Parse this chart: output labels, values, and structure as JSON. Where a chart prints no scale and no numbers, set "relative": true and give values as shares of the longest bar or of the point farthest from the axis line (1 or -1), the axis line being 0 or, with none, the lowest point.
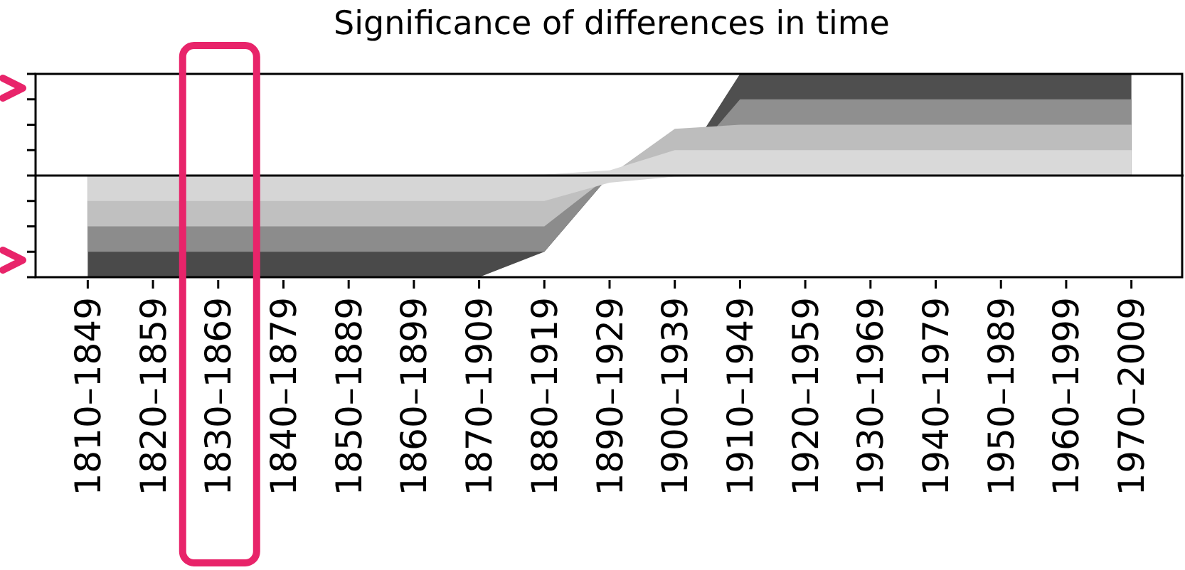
{
  "chart_data": {
    "type": "area",
    "title": "Significance of differences in time",
    "categories": [
      "1810–1849",
      "1820–1859",
      "1830–1869",
      "1840–1879",
      "1850–1889",
      "1860–1899",
      "1870–1909",
      "1880–1919",
      "1890–1929",
      "1900–1939",
      "1910–1949",
      "1920–1959",
      "1930–1969",
      "1940–1979",
      "1950–1989",
      "1960–1999",
      "1970–2009"
    ],
    "relative": true,
    "legend": false,
    "grid": false,
    "series": [
      {
        "color": "#4f4f4f",
        "values": [
          0,
          0,
          0,
          0,
          0,
          0,
          0,
          0,
          0,
          0,
          1,
          1,
          1,
          1,
          1,
          1,
          1
        ]
      },
      {
        "color": "#8f8f8f",
        "values": [
          0,
          0,
          0,
          0,
          0,
          0,
          0,
          0,
          0,
          0,
          0.75,
          0.75,
          0.75,
          0.75,
          0.75,
          0.75,
          0.75
        ]
      },
      {
        "color": "#bdbdbd",
        "values": [
          0,
          0,
          0,
          0,
          0,
          0,
          0,
          0,
          0,
          0.46,
          0.5,
          0.5,
          0.5,
          0.5,
          0.5,
          0.5,
          0.5
        ]
      },
      {
        "color": "#d9d9d9",
        "values": [
          0,
          0,
          0,
          0,
          0,
          0,
          0,
          0.01,
          0.05,
          0.25,
          0.25,
          0.25,
          0.25,
          0.25,
          0.25,
          0.25,
          0.25
        ]
      },
      {
        "color": "#4a4a4a",
        "values": [
          -1,
          -1,
          -1,
          -1,
          -1,
          -1,
          -1,
          -0.75,
          0,
          0,
          0,
          0,
          0,
          0,
          0,
          0,
          0
        ]
      },
      {
        "color": "#8c8c8c",
        "values": [
          -0.75,
          -0.75,
          -0.75,
          -0.75,
          -0.75,
          -0.75,
          -0.75,
          -0.75,
          0,
          0,
          0,
          0,
          0,
          0,
          0,
          0,
          0
        ]
      },
      {
        "color": "#c0c0c0",
        "values": [
          -0.5,
          -0.5,
          -0.5,
          -0.5,
          -0.5,
          -0.5,
          -0.5,
          -0.5,
          0,
          0,
          0,
          0,
          0,
          0,
          0,
          0,
          0
        ]
      },
      {
        "color": "#d6d6d6",
        "values": [
          -0.25,
          -0.25,
          -0.25,
          -0.25,
          -0.25,
          -0.25,
          -0.25,
          -0.25,
          -0.07,
          -0.01,
          0,
          0,
          0,
          0,
          0,
          0,
          0
        ]
      }
    ]
  }
}
